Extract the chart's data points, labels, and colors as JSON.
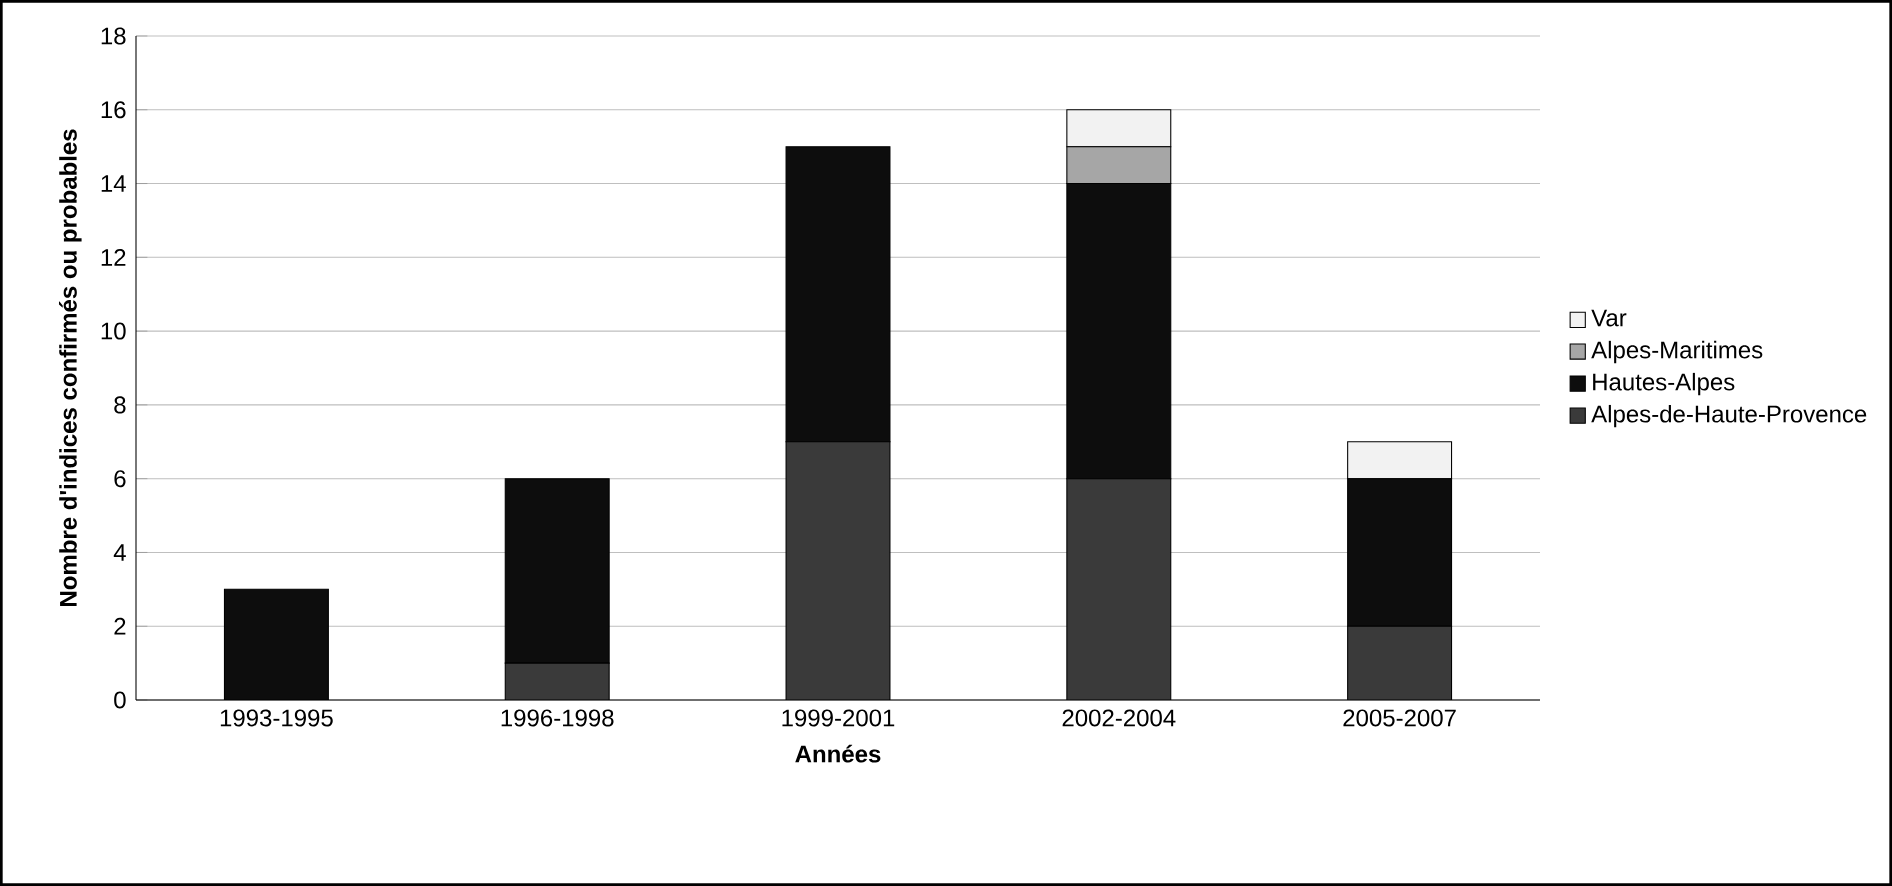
{
  "chart_data": {
    "type": "bar",
    "stacked": true,
    "xlabel": "Années",
    "ylabel": "Nombre d'indices confirmés ou probables",
    "categories": [
      "1993-1995",
      "1996-1998",
      "1999-2001",
      "2002-2004",
      "2005-2007"
    ],
    "series": [
      {
        "name": "Alpes-de-Haute-Provence",
        "color": "#3a3a3a",
        "values": [
          0,
          1,
          7,
          6,
          2
        ]
      },
      {
        "name": "Hautes-Alpes",
        "color": "#0d0d0d",
        "values": [
          3,
          5,
          8,
          8,
          4
        ]
      },
      {
        "name": "Alpes-Maritimes",
        "color": "#a6a6a6",
        "values": [
          0,
          0,
          0,
          1,
          0
        ]
      },
      {
        "name": "Var",
        "color": "#f2f2f2",
        "values": [
          0,
          0,
          0,
          1,
          1
        ]
      }
    ],
    "ylim": [
      0,
      18
    ],
    "yticks": [
      0,
      2,
      4,
      6,
      8,
      10,
      12,
      14,
      16,
      18
    ],
    "grid": "y",
    "legend": "right"
  }
}
